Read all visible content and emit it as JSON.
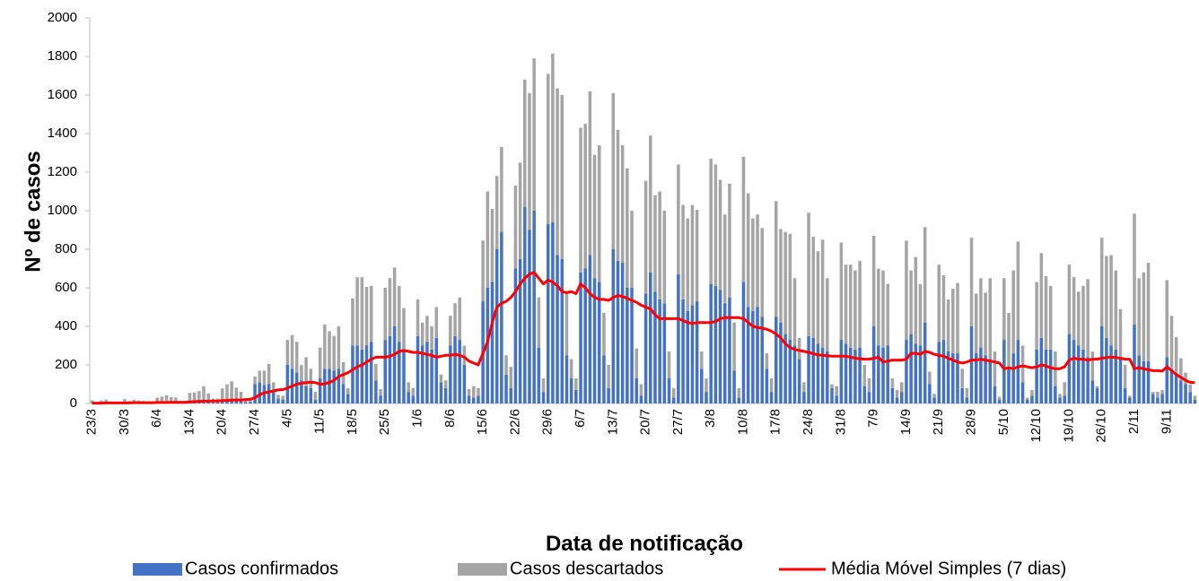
{
  "chart_data": {
    "type": "bar",
    "stacked": true,
    "grid": false,
    "xlabel": "Data de notificação",
    "ylabel": "Nº de casos",
    "ylim": [
      0,
      2000
    ],
    "yticks": [
      0,
      200,
      400,
      600,
      800,
      1000,
      1200,
      1400,
      1600,
      1800,
      2000
    ],
    "categories": [
      "23/3",
      null,
      null,
      null,
      null,
      null,
      null,
      "30/3",
      null,
      null,
      null,
      null,
      null,
      null,
      "6/4",
      null,
      null,
      null,
      null,
      null,
      null,
      "13/4",
      null,
      null,
      null,
      null,
      null,
      null,
      "20/4",
      null,
      null,
      null,
      null,
      null,
      null,
      "27/4",
      null,
      null,
      null,
      null,
      null,
      null,
      "4/5",
      null,
      null,
      null,
      null,
      null,
      null,
      "11/5",
      null,
      null,
      null,
      null,
      null,
      null,
      "18/5",
      null,
      null,
      null,
      null,
      null,
      null,
      "25/5",
      null,
      null,
      null,
      null,
      null,
      null,
      "1/6",
      null,
      null,
      null,
      null,
      null,
      null,
      "8/6",
      null,
      null,
      null,
      null,
      null,
      null,
      "15/6",
      null,
      null,
      null,
      null,
      null,
      null,
      "22/6",
      null,
      null,
      null,
      null,
      null,
      null,
      "29/6",
      null,
      null,
      null,
      null,
      null,
      null,
      "6/7",
      null,
      null,
      null,
      null,
      null,
      null,
      "13/7",
      null,
      null,
      null,
      null,
      null,
      null,
      "20/7",
      null,
      null,
      null,
      null,
      null,
      null,
      "27/7",
      null,
      null,
      null,
      null,
      null,
      null,
      "3/8",
      null,
      null,
      null,
      null,
      null,
      null,
      "10/8",
      null,
      null,
      null,
      null,
      null,
      null,
      "17/8",
      null,
      null,
      null,
      null,
      null,
      null,
      "24/8",
      null,
      null,
      null,
      null,
      null,
      null,
      "31/8",
      null,
      null,
      null,
      null,
      null,
      null,
      "7/9",
      null,
      null,
      null,
      null,
      null,
      null,
      "14/9",
      null,
      null,
      null,
      null,
      null,
      null,
      "21/9",
      null,
      null,
      null,
      null,
      null,
      null,
      "28/9",
      null,
      null,
      null,
      null,
      null,
      null,
      "5/10",
      null,
      null,
      null,
      null,
      null,
      null,
      "12/10",
      null,
      null,
      null,
      null,
      null,
      null,
      "19/10",
      null,
      null,
      null,
      null,
      null,
      null,
      "26/10",
      null,
      null,
      null,
      null,
      null,
      null,
      "2/11",
      null,
      null,
      null,
      null,
      null,
      null,
      "9/11",
      null,
      null,
      null,
      null,
      null,
      null
    ],
    "series": [
      {
        "name": "Casos confirmados",
        "color": "#4472c4",
        "values": [
          2,
          1,
          1,
          2,
          1,
          0,
          0,
          3,
          3,
          4,
          5,
          3,
          1,
          1,
          5,
          6,
          8,
          8,
          6,
          3,
          3,
          10,
          12,
          14,
          15,
          12,
          5,
          5,
          18,
          20,
          20,
          22,
          20,
          8,
          8,
          100,
          110,
          95,
          100,
          70,
          25,
          20,
          200,
          180,
          160,
          120,
          90,
          80,
          20,
          130,
          180,
          180,
          170,
          180,
          100,
          50,
          300,
          300,
          280,
          300,
          320,
          120,
          40,
          330,
          350,
          400,
          320,
          280,
          60,
          40,
          350,
          300,
          320,
          280,
          340,
          110,
          80,
          300,
          350,
          330,
          200,
          40,
          30,
          40,
          530,
          600,
          630,
          800,
          890,
          150,
          80,
          700,
          750,
          1020,
          900,
          1000,
          290,
          60,
          930,
          940,
          770,
          750,
          250,
          130,
          70,
          680,
          700,
          770,
          650,
          630,
          250,
          80,
          800,
          740,
          730,
          600,
          600,
          130,
          40,
          570,
          680,
          580,
          540,
          520,
          130,
          30,
          670,
          540,
          480,
          510,
          530,
          180,
          60,
          620,
          610,
          590,
          520,
          550,
          170,
          30,
          630,
          500,
          480,
          500,
          450,
          180,
          60,
          450,
          420,
          360,
          330,
          300,
          230,
          60,
          350,
          340,
          310,
          290,
          270,
          80,
          40,
          330,
          310,
          290,
          280,
          290,
          90,
          60,
          400,
          300,
          290,
          300,
          80,
          30,
          60,
          330,
          360,
          310,
          300,
          420,
          100,
          30,
          320,
          330,
          270,
          260,
          260,
          80,
          30,
          400,
          260,
          290,
          250,
          230,
          90,
          20,
          330,
          190,
          260,
          330,
          110,
          20,
          40,
          280,
          340,
          280,
          280,
          90,
          30,
          40,
          360,
          330,
          300,
          280,
          240,
          120,
          80,
          400,
          340,
          300,
          280,
          240,
          80,
          30,
          410,
          250,
          220,
          220,
          50,
          30,
          50,
          240,
          180,
          150,
          120,
          100,
          60,
          20
        ]
      },
      {
        "name": "Casos descartados",
        "color": "#a5a5a5",
        "values": [
          15,
          3,
          15,
          18,
          5,
          3,
          5,
          20,
          10,
          15,
          10,
          10,
          5,
          3,
          25,
          30,
          35,
          25,
          25,
          10,
          10,
          45,
          45,
          50,
          75,
          40,
          20,
          20,
          60,
          80,
          95,
          60,
          40,
          20,
          20,
          40,
          60,
          75,
          105,
          40,
          20,
          20,
          130,
          175,
          160,
          80,
          150,
          100,
          40,
          160,
          230,
          195,
          180,
          220,
          115,
          30,
          245,
          355,
          375,
          305,
          290,
          85,
          35,
          270,
          300,
          305,
          290,
          215,
          50,
          40,
          190,
          120,
          135,
          120,
          160,
          40,
          40,
          155,
          170,
          220,
          100,
          35,
          60,
          40,
          315,
          500,
          380,
          380,
          440,
          100,
          110,
          430,
          500,
          660,
          710,
          790,
          260,
          70,
          780,
          875,
          865,
          850,
          330,
          100,
          60,
          750,
          750,
          850,
          640,
          710,
          220,
          120,
          810,
          680,
          610,
          620,
          400,
          155,
          60,
          585,
          710,
          500,
          560,
          480,
          140,
          50,
          570,
          490,
          480,
          520,
          475,
          90,
          70,
          650,
          630,
          570,
          460,
          590,
          250,
          50,
          650,
          590,
          480,
          480,
          460,
          80,
          70,
          600,
          485,
          530,
          550,
          350,
          110,
          50,
          640,
          525,
          480,
          560,
          380,
          20,
          50,
          505,
          410,
          430,
          410,
          450,
          110,
          70,
          470,
          400,
          400,
          320,
          50,
          40,
          50,
          515,
          330,
          450,
          320,
          495,
          65,
          20,
          400,
          335,
          270,
          335,
          365,
          100,
          50,
          460,
          310,
          360,
          325,
          420,
          180,
          15,
          320,
          280,
          430,
          510,
          190,
          10,
          30,
          350,
          440,
          380,
          330,
          180,
          20,
          70,
          360,
          325,
          280,
          330,
          405,
          150,
          10,
          460,
          425,
          470,
          410,
          250,
          120,
          10,
          575,
          400,
          460,
          510,
          10,
          30,
          20,
          400,
          275,
          195,
          115,
          60,
          40,
          20
        ]
      },
      {
        "name": "Média Móvel Simples (7 dias)",
        "color": "#ff0000",
        "type": "line",
        "values": [
          2,
          2,
          2,
          3,
          3,
          3,
          3,
          3,
          3,
          4,
          4,
          4,
          4,
          4,
          5,
          5,
          5,
          6,
          6,
          6,
          6,
          8,
          10,
          11,
          12,
          12,
          13,
          13,
          15,
          16,
          17,
          18,
          18,
          20,
          22,
          30,
          45,
          55,
          60,
          65,
          70,
          72,
          80,
          90,
          100,
          105,
          108,
          110,
          108,
          100,
          102,
          110,
          120,
          140,
          150,
          160,
          175,
          190,
          200,
          215,
          230,
          240,
          240,
          240,
          245,
          255,
          270,
          275,
          270,
          265,
          265,
          260,
          255,
          250,
          240,
          245,
          250,
          250,
          255,
          250,
          240,
          220,
          210,
          200,
          260,
          320,
          420,
          500,
          520,
          530,
          550,
          580,
          620,
          650,
          670,
          680,
          650,
          620,
          640,
          630,
          610,
          580,
          575,
          580,
          570,
          620,
          600,
          570,
          550,
          540,
          540,
          535,
          550,
          560,
          555,
          545,
          535,
          525,
          510,
          500,
          490,
          460,
          440,
          440,
          440,
          440,
          440,
          430,
          420,
          415,
          420,
          420,
          420,
          420,
          425,
          440,
          445,
          445,
          445,
          445,
          440,
          420,
          400,
          395,
          390,
          385,
          375,
          360,
          340,
          310,
          290,
          280,
          275,
          270,
          265,
          258,
          252,
          250,
          248,
          245,
          245,
          245,
          245,
          240,
          235,
          232,
          230,
          230,
          235,
          240,
          215,
          220,
          225,
          225,
          225,
          230,
          260,
          260,
          255,
          270,
          265,
          255,
          250,
          245,
          235,
          225,
          215,
          210,
          215,
          225,
          225,
          230,
          225,
          220,
          215,
          210,
          180,
          185,
          180,
          190,
          195,
          190,
          185,
          190,
          200,
          195,
          185,
          180,
          180,
          190,
          225,
          235,
          230,
          230,
          225,
          230,
          230,
          235,
          238,
          240,
          238,
          235,
          230,
          230,
          180,
          185,
          180,
          175,
          170,
          170,
          168,
          190,
          170,
          150,
          135,
          120,
          110,
          108
        ]
      }
    ]
  }
}
